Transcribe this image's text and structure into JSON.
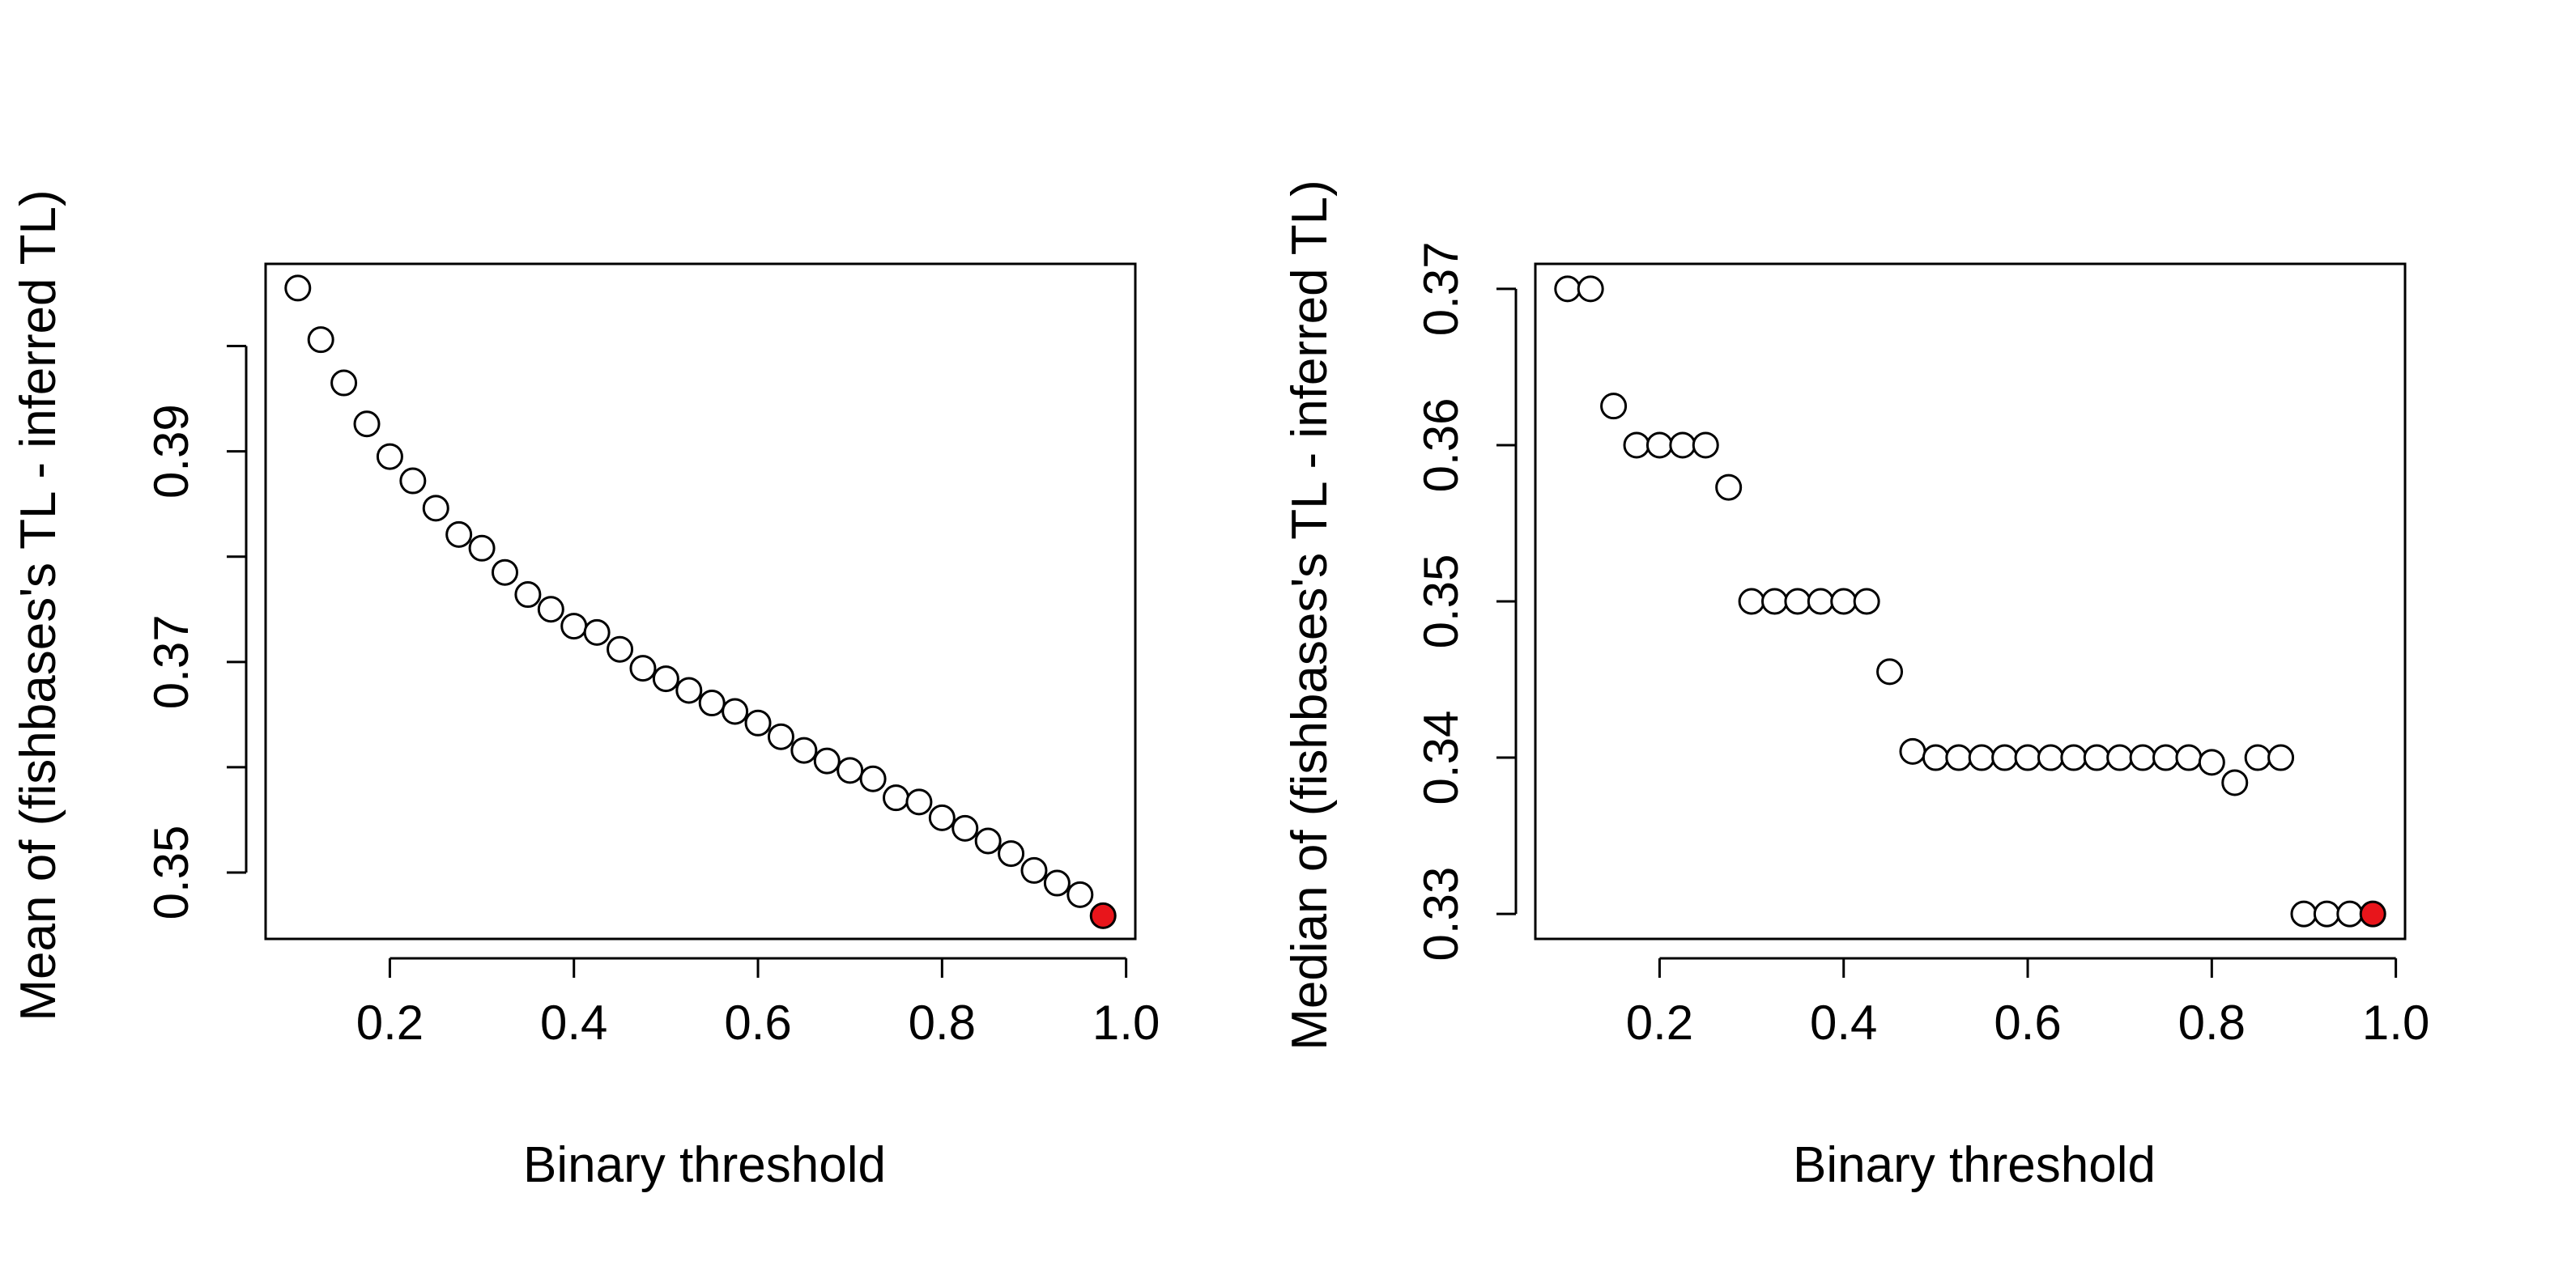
{
  "chart_data": [
    {
      "type": "scatter",
      "xlabel": "Binary threshold",
      "ylabel": "Mean of (fishbases's TL - inferred TL)",
      "xlim": [
        0.065,
        1.01
      ],
      "ylim": [
        0.3437,
        0.4078
      ],
      "x_ticks": [
        0.2,
        0.4,
        0.6,
        0.8,
        1.0
      ],
      "x_tick_labels": [
        "0.2",
        "0.4",
        "0.6",
        "0.8",
        "1.0"
      ],
      "y_ticks": [
        0.35,
        0.36,
        0.37,
        0.38,
        0.39,
        0.4
      ],
      "y_tick_labels": [
        "0.35",
        "",
        "0.37",
        "",
        "0.39",
        ""
      ],
      "highlight_color": "#e8151b",
      "points": [
        {
          "x": 0.1,
          "y": 0.4055
        },
        {
          "x": 0.125,
          "y": 0.4006
        },
        {
          "x": 0.15,
          "y": 0.3965
        },
        {
          "x": 0.175,
          "y": 0.3926
        },
        {
          "x": 0.2,
          "y": 0.3895
        },
        {
          "x": 0.225,
          "y": 0.3872
        },
        {
          "x": 0.25,
          "y": 0.3846
        },
        {
          "x": 0.275,
          "y": 0.3821
        },
        {
          "x": 0.3,
          "y": 0.3808
        },
        {
          "x": 0.325,
          "y": 0.3785
        },
        {
          "x": 0.35,
          "y": 0.3764
        },
        {
          "x": 0.375,
          "y": 0.375
        },
        {
          "x": 0.4,
          "y": 0.3734
        },
        {
          "x": 0.425,
          "y": 0.3728
        },
        {
          "x": 0.45,
          "y": 0.3712
        },
        {
          "x": 0.475,
          "y": 0.3694
        },
        {
          "x": 0.5,
          "y": 0.3684
        },
        {
          "x": 0.525,
          "y": 0.3673
        },
        {
          "x": 0.55,
          "y": 0.3661
        },
        {
          "x": 0.575,
          "y": 0.3653
        },
        {
          "x": 0.6,
          "y": 0.3642
        },
        {
          "x": 0.625,
          "y": 0.3629
        },
        {
          "x": 0.65,
          "y": 0.3616
        },
        {
          "x": 0.675,
          "y": 0.3606
        },
        {
          "x": 0.7,
          "y": 0.3597
        },
        {
          "x": 0.725,
          "y": 0.3589
        },
        {
          "x": 0.75,
          "y": 0.3571
        },
        {
          "x": 0.775,
          "y": 0.3567
        },
        {
          "x": 0.8,
          "y": 0.3552
        },
        {
          "x": 0.825,
          "y": 0.3542
        },
        {
          "x": 0.85,
          "y": 0.353
        },
        {
          "x": 0.875,
          "y": 0.3518
        },
        {
          "x": 0.9,
          "y": 0.3502
        },
        {
          "x": 0.925,
          "y": 0.349
        },
        {
          "x": 0.95,
          "y": 0.3479
        },
        {
          "x": 0.975,
          "y": 0.3459,
          "highlight": true
        }
      ]
    },
    {
      "type": "scatter",
      "xlabel": "Binary threshold",
      "ylabel": "Median of (fishbases's TL - inferred TL)",
      "xlim": [
        0.065,
        1.01
      ],
      "ylim": [
        0.3284,
        0.3716
      ],
      "x_ticks": [
        0.2,
        0.4,
        0.6,
        0.8,
        1.0
      ],
      "x_tick_labels": [
        "0.2",
        "0.4",
        "0.6",
        "0.8",
        "1.0"
      ],
      "y_ticks": [
        0.33,
        0.34,
        0.35,
        0.36,
        0.37
      ],
      "y_tick_labels": [
        "0.33",
        "0.34",
        "0.35",
        "0.36",
        "0.37"
      ],
      "highlight_color": "#e8151b",
      "points": [
        {
          "x": 0.1,
          "y": 0.37
        },
        {
          "x": 0.125,
          "y": 0.37
        },
        {
          "x": 0.15,
          "y": 0.3625
        },
        {
          "x": 0.175,
          "y": 0.36
        },
        {
          "x": 0.2,
          "y": 0.36
        },
        {
          "x": 0.225,
          "y": 0.36
        },
        {
          "x": 0.25,
          "y": 0.36
        },
        {
          "x": 0.275,
          "y": 0.3573
        },
        {
          "x": 0.3,
          "y": 0.35
        },
        {
          "x": 0.325,
          "y": 0.35
        },
        {
          "x": 0.35,
          "y": 0.35
        },
        {
          "x": 0.375,
          "y": 0.35
        },
        {
          "x": 0.4,
          "y": 0.35
        },
        {
          "x": 0.425,
          "y": 0.35
        },
        {
          "x": 0.45,
          "y": 0.3455
        },
        {
          "x": 0.475,
          "y": 0.3404
        },
        {
          "x": 0.5,
          "y": 0.34
        },
        {
          "x": 0.525,
          "y": 0.34
        },
        {
          "x": 0.55,
          "y": 0.34
        },
        {
          "x": 0.575,
          "y": 0.34
        },
        {
          "x": 0.6,
          "y": 0.34
        },
        {
          "x": 0.625,
          "y": 0.34
        },
        {
          "x": 0.65,
          "y": 0.34
        },
        {
          "x": 0.675,
          "y": 0.34
        },
        {
          "x": 0.7,
          "y": 0.34
        },
        {
          "x": 0.725,
          "y": 0.34
        },
        {
          "x": 0.75,
          "y": 0.34
        },
        {
          "x": 0.775,
          "y": 0.34
        },
        {
          "x": 0.8,
          "y": 0.3397
        },
        {
          "x": 0.825,
          "y": 0.3384
        },
        {
          "x": 0.85,
          "y": 0.34
        },
        {
          "x": 0.875,
          "y": 0.34
        },
        {
          "x": 0.9,
          "y": 0.33
        },
        {
          "x": 0.925,
          "y": 0.33
        },
        {
          "x": 0.95,
          "y": 0.33
        },
        {
          "x": 0.975,
          "y": 0.33,
          "highlight": true
        }
      ]
    }
  ]
}
